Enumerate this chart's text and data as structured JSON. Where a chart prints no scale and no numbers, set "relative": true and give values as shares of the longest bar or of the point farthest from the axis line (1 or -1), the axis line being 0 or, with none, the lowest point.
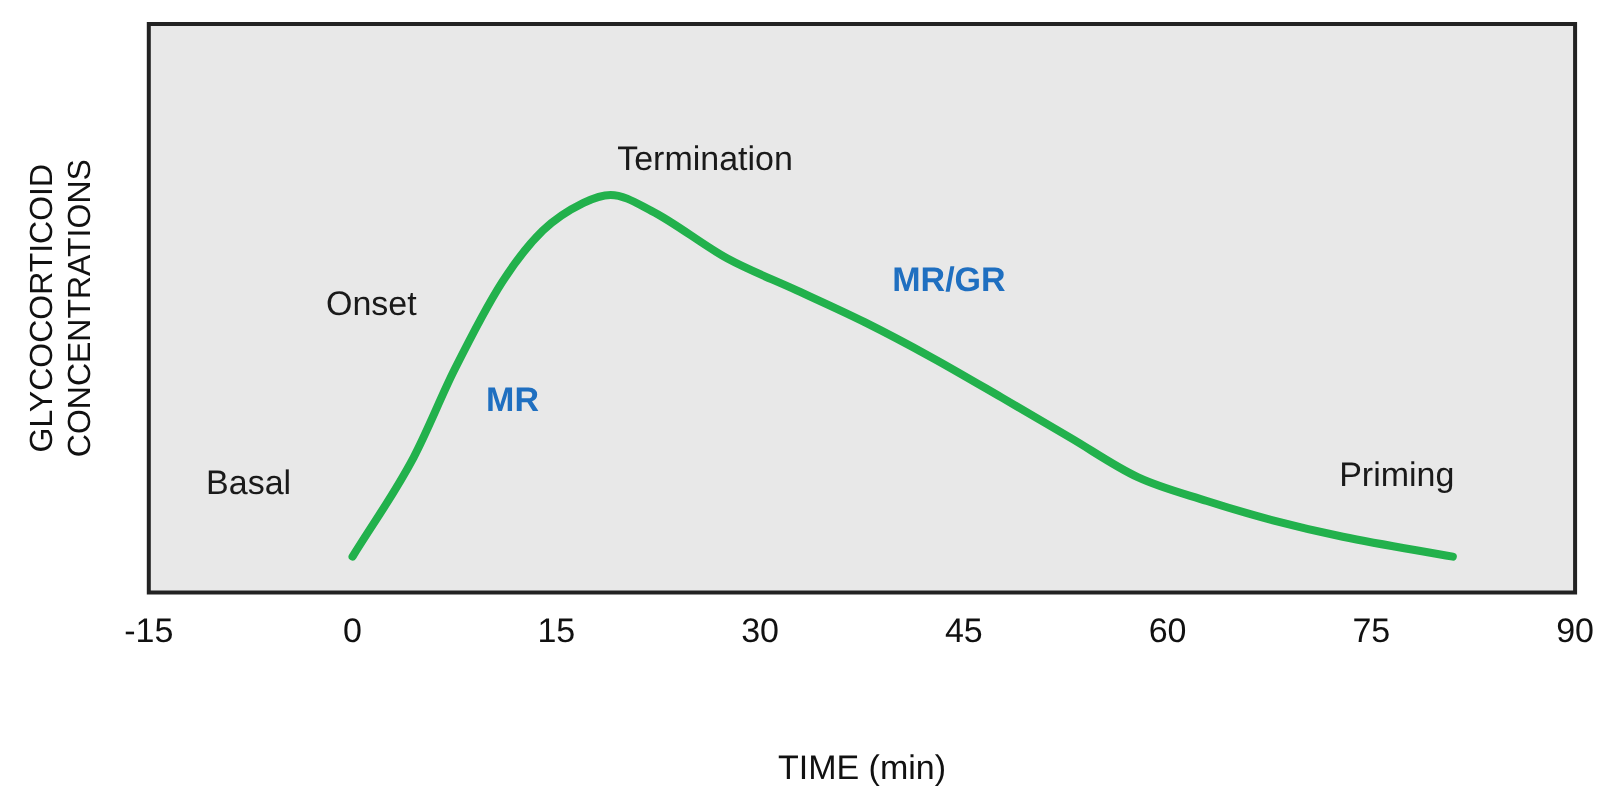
{
  "chart_data": {
    "type": "line",
    "xlabel": "TIME (min)",
    "ylabel": "GLYCOCORTICOID CONCENTRATIONS",
    "relative": true,
    "xlim": [
      -15,
      90
    ],
    "xticks": [
      -15,
      0,
      15,
      30,
      45,
      60,
      75,
      90
    ],
    "grid": false,
    "legend": false,
    "marker": "none",
    "line_style": "solid",
    "series": [
      {
        "color": "#22b14c",
        "x": [
          0,
          4.5,
          7.5,
          11,
          14,
          17,
          19,
          22,
          27.6,
          32.7,
          37.7,
          42.7,
          47.8,
          52.8,
          57.8,
          62.9,
          67.9,
          72.9,
          81
        ],
        "values": [
          0.09,
          0.34,
          0.56,
          0.78,
          0.91,
          0.98,
          1,
          0.96,
          0.84,
          0.76,
          0.68,
          0.59,
          0.49,
          0.39,
          0.29,
          0.23,
          0.18,
          0.14,
          0.09
        ]
      }
    ],
    "annotations": [
      "Basal",
      "Onset",
      "MR",
      "Termination",
      "MR/GR",
      "Priming"
    ]
  }
}
